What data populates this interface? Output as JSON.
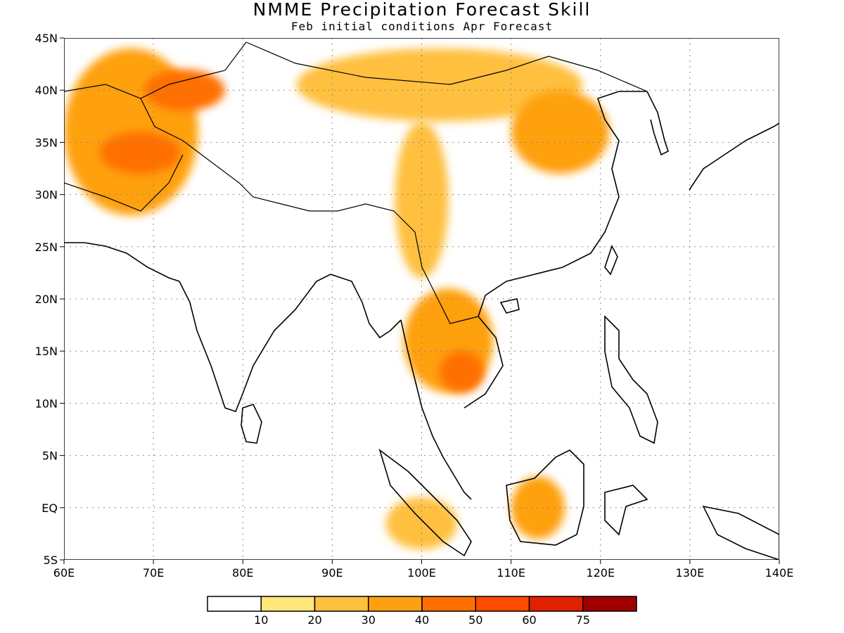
{
  "title": "NMME Precipitation Forecast Skill",
  "subtitle": "Feb initial conditions  Apr Forecast",
  "map": {
    "lon_range": [
      60,
      140
    ],
    "lat_range": [
      -5,
      45
    ],
    "x_ticks": [
      "60E",
      "70E",
      "80E",
      "90E",
      "100E",
      "110E",
      "120E",
      "130E",
      "140E"
    ],
    "y_ticks": [
      "5S",
      "EQ",
      "5N",
      "10N",
      "15N",
      "20N",
      "25N",
      "30N",
      "35N",
      "40N",
      "45N"
    ],
    "grid": true
  },
  "colorbar": {
    "labels": [
      "10",
      "20",
      "30",
      "40",
      "50",
      "60",
      "75"
    ],
    "colors": [
      "#ffffff",
      "#ffe77a",
      "#ffc040",
      "#ffa010",
      "#ff7000",
      "#ff4a00",
      "#e02000",
      "#a00000"
    ]
  },
  "regions": [
    {
      "name": "afghanistan-west-asia-skill-region",
      "level": 3,
      "lon": [
        60,
        75
      ],
      "lat": [
        28,
        44
      ]
    },
    {
      "name": "central-asia-skill-region",
      "level": 4,
      "lon": [
        64,
        73
      ],
      "lat": [
        32,
        36
      ]
    },
    {
      "name": "tajikistan-skill-region",
      "level": 4,
      "lon": [
        69,
        78
      ],
      "lat": [
        38,
        42
      ]
    },
    {
      "name": "mongolia-skill-region",
      "level": 2,
      "lon": [
        86,
        118
      ],
      "lat": [
        37,
        44
      ]
    },
    {
      "name": "north-china-skill-region",
      "level": 3,
      "lon": [
        110,
        121
      ],
      "lat": [
        32,
        40
      ]
    },
    {
      "name": "tibet-plateau-skill-region",
      "level": 2,
      "lon": [
        97,
        103
      ],
      "lat": [
        22,
        37
      ]
    },
    {
      "name": "indochina-skill-region",
      "level": 3,
      "lon": [
        98,
        108
      ],
      "lat": [
        11,
        21
      ]
    },
    {
      "name": "cambodia-skill-region",
      "level": 4,
      "lon": [
        102,
        107
      ],
      "lat": [
        11,
        15
      ]
    },
    {
      "name": "borneo-skill-region",
      "level": 3,
      "lon": [
        110,
        116
      ],
      "lat": [
        -3,
        3
      ]
    },
    {
      "name": "sumatra-skill-region",
      "level": 2,
      "lon": [
        96,
        104
      ],
      "lat": [
        -4,
        1
      ]
    }
  ]
}
